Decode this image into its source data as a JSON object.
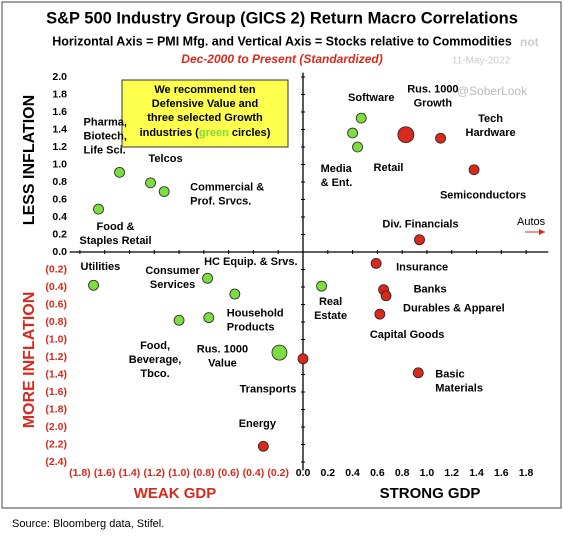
{
  "chart_data": {
    "type": "scatter",
    "title": "S&P 500 Industry Group (GICS 2) Return Macro Correlations",
    "subtitle": "Horizontal Axis = PMI Mfg. and Vertical Axis = Stocks relative to Commodities",
    "period": "Dec-2000 to Present (Standardized)",
    "date": "11-May-2022",
    "watermark": "@SoberLook",
    "watermark_fragment": "not",
    "annotation": [
      "We recommend ten",
      "Defensive Value and",
      "three selected Growth",
      "industries (",
      "green",
      " circles)"
    ],
    "y_axis_top_label": "LESS INFLATION",
    "y_axis_bottom_label": "MORE INFLATION",
    "x_axis_left_label": "WEAK GDP",
    "x_axis_right_label": "STRONG GDP",
    "offchart_label": "Autos",
    "source": "Source: Bloomberg data, Stifel.",
    "xlim": [
      -1.85,
      1.85
    ],
    "ylim": [
      -2.45,
      2.05
    ],
    "xticks": [
      {
        "value": -1.8,
        "label": "(1.8)"
      },
      {
        "value": -1.6,
        "label": "(1.6)"
      },
      {
        "value": -1.4,
        "label": "(1.4)"
      },
      {
        "value": -1.2,
        "label": "(1.2)"
      },
      {
        "value": -1.0,
        "label": "(1.0)"
      },
      {
        "value": -0.8,
        "label": "(0.8)"
      },
      {
        "value": -0.6,
        "label": "(0.6)"
      },
      {
        "value": -0.4,
        "label": "(0.4)"
      },
      {
        "value": -0.2,
        "label": "(0.2)"
      },
      {
        "value": 0,
        "label": "0.0"
      },
      0.2,
      0.4,
      0.6,
      0.8,
      {
        "value": 1,
        "label": "1.0"
      },
      1.2,
      1.4,
      1.6,
      1.8
    ],
    "yticks": [
      {
        "value": 2,
        "label": "2.0"
      },
      1.8,
      1.6,
      1.4,
      1.2,
      {
        "value": 1,
        "label": "1.0"
      },
      0.8,
      0.6,
      0.4,
      0.2,
      {
        "value": 0,
        "label": "0.0"
      },
      {
        "value": -0.2,
        "label": "(0.2)"
      },
      {
        "value": -0.4,
        "label": "(0.4)"
      },
      {
        "value": -0.6,
        "label": "(0.6)"
      },
      {
        "value": -0.8,
        "label": "(0.8)"
      },
      {
        "value": -1.0,
        "label": "(1.0)"
      },
      {
        "value": -1.2,
        "label": "(1.2)"
      },
      {
        "value": -1.4,
        "label": "(1.4)"
      },
      {
        "value": -1.6,
        "label": "(1.6)"
      },
      {
        "value": -1.8,
        "label": "(1.8)"
      },
      {
        "value": -2.0,
        "label": "(2.0)"
      },
      {
        "value": -2.2,
        "label": "(2.2)"
      },
      {
        "value": -2.4,
        "label": "(2.4)"
      }
    ],
    "series": [
      {
        "color": "#7ddc3f",
        "x": [
          -1.48,
          -1.23,
          -1.12,
          -1.65,
          0.47,
          0.4,
          0.44,
          -1.69,
          -0.77,
          -0.55,
          -0.76,
          -1.0,
          -0.19,
          0.15
        ],
        "values": [
          0.91,
          0.79,
          0.69,
          0.49,
          1.53,
          1.36,
          1.2,
          -0.38,
          -0.3,
          -0.48,
          -0.75,
          -0.78,
          -1.15,
          -0.39
        ],
        "labels": [
          [
            "Pharma,",
            "Biotech,",
            "Life Sci."
          ],
          [
            "Telcos"
          ],
          [
            "Commercial &",
            "Prof. Srvcs."
          ],
          [
            "Food &",
            "Staples Retail"
          ],
          [
            "Software"
          ],
          [
            "Media",
            "& Ent."
          ],
          [
            "Retail"
          ],
          [
            "Utilities"
          ],
          [
            "Consumer",
            "Services"
          ],
          [
            "HC Equip. & Srvs."
          ],
          [
            "Household",
            "Products"
          ],
          [
            "Food,",
            "Beverage,",
            "Tbco."
          ],
          [
            "Rus. 1000",
            "Value"
          ],
          [
            "Real",
            "Estate"
          ]
        ]
      },
      {
        "color": "#d9291c",
        "x": [
          0.83,
          1.11,
          1.38,
          0.94,
          0.59,
          0.65,
          0.67,
          0.62,
          0.93,
          0.0,
          -0.32
        ],
        "values": [
          1.34,
          1.3,
          0.94,
          0.14,
          -0.13,
          -0.43,
          -0.5,
          -0.71,
          -1.38,
          -1.22,
          -2.22
        ],
        "labels": [
          [
            "Rus. 1000",
            "Growth"
          ],
          [
            "Tech",
            "Hardware"
          ],
          [
            "Semiconductors"
          ],
          [
            "Div. Financials"
          ],
          [
            "Insurance"
          ],
          [
            "Banks"
          ],
          [
            "Durables & Apparel"
          ],
          [
            "Capital Goods"
          ],
          [
            "Basic",
            "Materials"
          ],
          [
            "Transports"
          ],
          [
            "Energy"
          ]
        ]
      }
    ]
  }
}
